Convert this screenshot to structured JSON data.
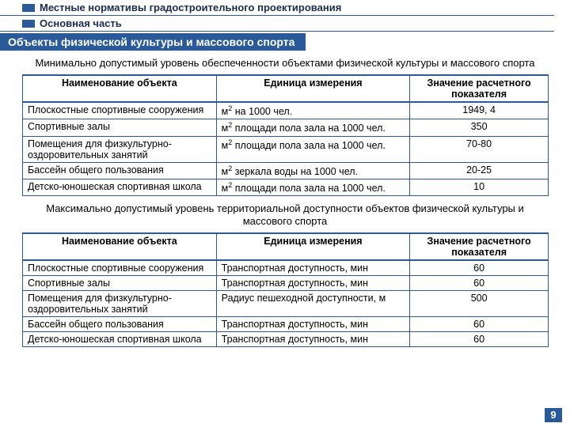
{
  "header": {
    "line1": "Местные нормативы градостроительного проектирования",
    "line2": "Основная часть"
  },
  "section_title": "Объекты физической культуры и массового спорта",
  "subtitle1": "Минимально допустимый уровень обеспеченности объектами физической культуры и массового спорта",
  "table1": {
    "headers": {
      "c1": "Наименование объекта",
      "c2": "Единица измерения",
      "c3": "Значение расчетного показателя"
    },
    "rows": [
      {
        "name": "Плоскостные спортивные сооружения",
        "unit_pre": "м",
        "unit_sup": "2",
        "unit_post": " на 1000 чел.",
        "value": "1949, 4"
      },
      {
        "name": "Спортивные залы",
        "unit_pre": "м",
        "unit_sup": "2",
        "unit_post": " площади пола зала на 1000 чел.",
        "value": "350"
      },
      {
        "name": "Помещения для физкультурно-оздоровительных занятий",
        "unit_pre": "м",
        "unit_sup": "2",
        "unit_post": " площади пола зала на 1000 чел.",
        "value": "70-80"
      },
      {
        "name": "Бассейн общего пользования",
        "unit_pre": "м",
        "unit_sup": "2",
        "unit_post": " зеркала воды на 1000 чел.",
        "value": "20-25"
      },
      {
        "name": "Детско-юношеская спортивная школа",
        "unit_pre": "м",
        "unit_sup": "2",
        "unit_post": " площади пола зала на 1000 чел.",
        "value": "10"
      }
    ]
  },
  "subtitle2": "Максимально допустимый уровень территориальной доступности объектов физической культуры и массового спорта",
  "table2": {
    "headers": {
      "c1": "Наименование объекта",
      "c2": "Единица измерения",
      "c3": "Значение расчетного показателя"
    },
    "rows": [
      {
        "name": "Плоскостные спортивные сооружения",
        "unit": "Транспортная доступность, мин",
        "value": "60"
      },
      {
        "name": "Спортивные залы",
        "unit": "Транспортная доступность, мин",
        "value": "60"
      },
      {
        "name": "Помещения для физкультурно-оздоровительных занятий",
        "unit": "Радиус пешеходной доступности, м",
        "value": "500"
      },
      {
        "name": "Бассейн общего пользования",
        "unit": "Транспортная доступность, мин",
        "value": "60"
      },
      {
        "name": "Детско-юношеская спортивная школа",
        "unit": "Транспортная доступность, мин",
        "value": "60"
      }
    ]
  },
  "page_number": "9",
  "colors": {
    "accent": "#2a5a9a",
    "text": "#000000",
    "bg": "#ffffff"
  }
}
